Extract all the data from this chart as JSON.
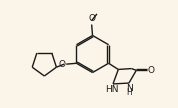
{
  "bg_color": "#faf5e8",
  "bond_color": "#1a1a1a",
  "text_color": "#1a1a1a",
  "line_width": 1.0,
  "font_size": 6.5,
  "figsize": [
    1.78,
    1.08
  ],
  "dpi": 100,
  "xlim": [
    0,
    10
  ],
  "ylim": [
    0,
    6
  ]
}
